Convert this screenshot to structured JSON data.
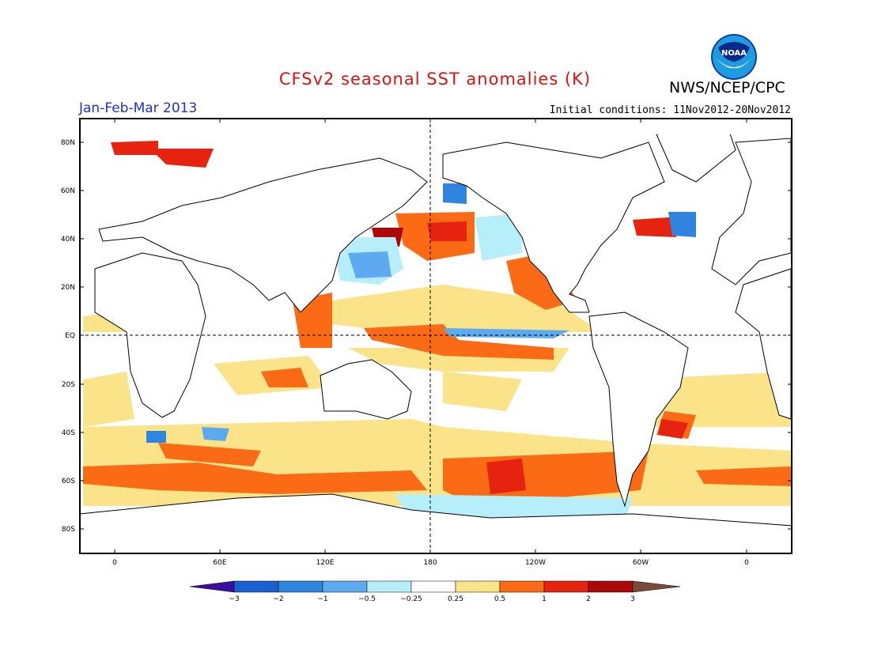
{
  "header": {
    "title": "CFSv2 seasonal SST anomalies (K)",
    "organization": "NWS/NCEP/CPC",
    "logo_text": "NOAA",
    "period": "Jan-Feb-Mar 2013",
    "initial_conditions": "Initial conditions: 11Nov2012-20Nov2012"
  },
  "map": {
    "lat_labels": [
      "80N",
      "60N",
      "40N",
      "20N",
      "EQ",
      "20S",
      "40S",
      "60S",
      "80S"
    ],
    "lon_labels": [
      "0",
      "60E",
      "120E",
      "180",
      "120W",
      "60W",
      "0"
    ],
    "colors": {
      "land_outline": "#000000",
      "ocean_neutral": "#ffffff"
    }
  },
  "colorbar": {
    "ticks": [
      "-3",
      "-2",
      "-1",
      "-0.5",
      "-0.25",
      "0.25",
      "0.5",
      "1",
      "2",
      "3"
    ],
    "colors": [
      "#3a0fa0",
      "#1c5fd0",
      "#2f84e0",
      "#5eaaf0",
      "#b6eefa",
      "#ffffff",
      "#fbe38a",
      "#fb6a14",
      "#e6230e",
      "#ab0808",
      "#7a4a3a"
    ]
  }
}
